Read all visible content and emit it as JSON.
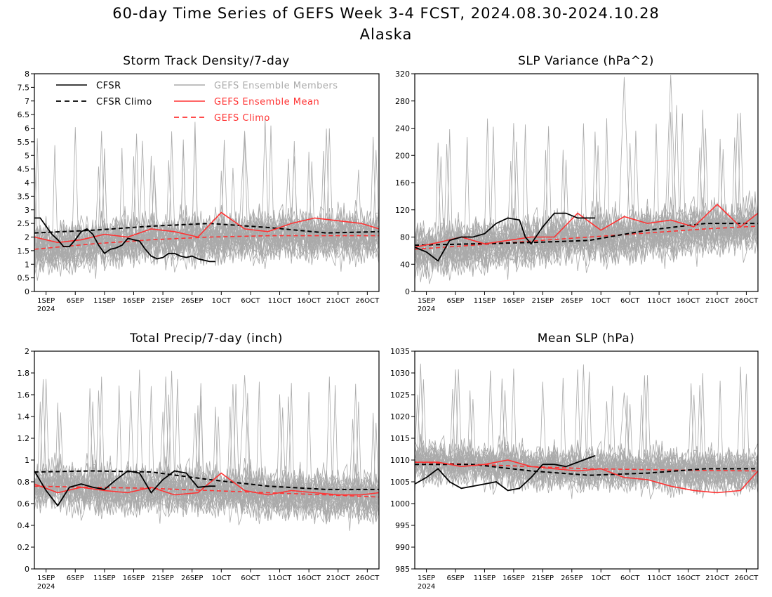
{
  "figure": {
    "title_line1": "60-day Time Series of GEFS Week 3-4 FCST, 2024.08.30-2024.10.28",
    "title_line2": "Alaska"
  },
  "colors": {
    "cfsr": "#000000",
    "members": "#aaaaaa",
    "ens_mean": "#ff3333",
    "gefs_climo": "#ff3333"
  },
  "legend": [
    {
      "key": "cfsr",
      "label": "CFSR",
      "style": "solid",
      "color": "#000000"
    },
    {
      "key": "cfsr_climo",
      "label": "CFSR Climo",
      "style": "dashed",
      "color": "#000000"
    },
    {
      "key": "members",
      "label": "GEFS Ensemble Members",
      "style": "solid",
      "color": "#aaaaaa"
    },
    {
      "key": "ens_mean",
      "label": "GEFS Ensemble Mean",
      "style": "solid",
      "color": "#ff3333"
    },
    {
      "key": "gefs_climo",
      "label": "GEFS Climo",
      "style": "dashed",
      "color": "#ff3333"
    }
  ],
  "chart_data": [
    {
      "type": "line",
      "title": "Storm Track Density/7-day",
      "ylim": [
        0,
        8
      ],
      "yticks": [
        "0",
        "0.5",
        "1",
        "1.5",
        "2",
        "2.5",
        "3",
        "3.5",
        "4",
        "4.5",
        "5",
        "5.5",
        "6",
        "6.5",
        "7",
        "7.5",
        "8"
      ],
      "x_dates": [
        "2024-08-30",
        "2024-10-28"
      ],
      "xticks": [
        "1SEP",
        "6SEP",
        "11SEP",
        "16SEP",
        "21SEP",
        "26SEP",
        "1OCT",
        "6OCT",
        "11OCT",
        "16OCT",
        "21OCT",
        "26OCT"
      ],
      "xtick_year": "2024",
      "ensemble_members": {
        "count": 30,
        "typical_range": [
          0.5,
          4.5
        ],
        "max_values": [
          5.9
        ]
      },
      "series": [
        {
          "name": "CFSR",
          "x_day": [
            0,
            1,
            2,
            3,
            4,
            5,
            6,
            7,
            8,
            9,
            10,
            11,
            12,
            13,
            14,
            15,
            16,
            17,
            18,
            19,
            20,
            21,
            22,
            23,
            24,
            25,
            26,
            27,
            28,
            29,
            30,
            31
          ],
          "values": [
            2.7,
            2.7,
            2.4,
            2.1,
            1.9,
            1.65,
            1.65,
            1.9,
            2.2,
            2.3,
            2.1,
            1.7,
            1.4,
            1.55,
            1.6,
            1.7,
            1.95,
            1.9,
            1.85,
            1.55,
            1.3,
            1.2,
            1.25,
            1.4,
            1.4,
            1.3,
            1.25,
            1.3,
            1.2,
            1.15,
            1.1,
            1.1
          ]
        },
        {
          "name": "CFSR Climo",
          "x_day": [
            0,
            10,
            20,
            30,
            40,
            50,
            59
          ],
          "values": [
            2.15,
            2.25,
            2.4,
            2.5,
            2.35,
            2.15,
            2.2
          ]
        },
        {
          "name": "GEFS Ensemble Mean",
          "x_day": [
            0,
            4,
            8,
            12,
            16,
            20,
            24,
            28,
            32,
            36,
            40,
            44,
            48,
            52,
            56,
            59
          ],
          "values": [
            2.0,
            1.8,
            1.9,
            2.1,
            2.0,
            2.3,
            2.2,
            2.0,
            2.9,
            2.3,
            2.2,
            2.5,
            2.7,
            2.6,
            2.5,
            2.3
          ]
        },
        {
          "name": "GEFS Climo",
          "x_day": [
            0,
            10,
            20,
            30,
            40,
            50,
            59
          ],
          "values": [
            1.55,
            1.75,
            1.9,
            2.0,
            2.05,
            2.05,
            2.05
          ]
        }
      ]
    },
    {
      "type": "line",
      "title": "SLP Variance (hPa^2)",
      "ylim": [
        0,
        320
      ],
      "yticks": [
        "0",
        "40",
        "80",
        "120",
        "160",
        "200",
        "240",
        "280",
        "320"
      ],
      "x_dates": [
        "2024-08-30",
        "2024-10-28"
      ],
      "xticks": [
        "1SEP",
        "6SEP",
        "11SEP",
        "16SEP",
        "21SEP",
        "26SEP",
        "1OCT",
        "6OCT",
        "11OCT",
        "16OCT",
        "21OCT",
        "26OCT"
      ],
      "xtick_year": "2024",
      "ensemble_members": {
        "count": 30,
        "typical_range": [
          30,
          200
        ],
        "max_values": [
          315,
          318
        ]
      },
      "series": [
        {
          "name": "CFSR",
          "x_day": [
            0,
            2,
            4,
            6,
            8,
            10,
            12,
            14,
            16,
            18,
            19,
            20,
            22,
            24,
            26,
            28,
            30,
            31
          ],
          "values": [
            65,
            58,
            45,
            75,
            80,
            80,
            85,
            100,
            108,
            105,
            80,
            70,
            95,
            115,
            115,
            108,
            108,
            108
          ]
        },
        {
          "name": "CFSR Climo",
          "x_day": [
            0,
            10,
            20,
            30,
            40,
            50,
            59
          ],
          "values": [
            68,
            70,
            72,
            75,
            90,
            100,
            100
          ]
        },
        {
          "name": "GEFS Ensemble Mean",
          "x_day": [
            0,
            4,
            8,
            12,
            16,
            20,
            24,
            28,
            32,
            36,
            40,
            44,
            48,
            52,
            56,
            59
          ],
          "values": [
            65,
            72,
            80,
            70,
            75,
            80,
            80,
            115,
            90,
            110,
            100,
            105,
            95,
            128,
            95,
            115
          ]
        },
        {
          "name": "GEFS Climo",
          "x_day": [
            0,
            10,
            20,
            30,
            40,
            50,
            59
          ],
          "values": [
            62,
            68,
            74,
            80,
            86,
            92,
            96
          ]
        }
      ]
    },
    {
      "type": "line",
      "title": "Total Precip/7-day (inch)",
      "ylim": [
        0,
        2
      ],
      "yticks": [
        "0",
        "0.2",
        "0.4",
        "0.6",
        "0.8",
        "1",
        "1.2",
        "1.4",
        "1.6",
        "1.8",
        "2"
      ],
      "x_dates": [
        "2024-08-30",
        "2024-10-28"
      ],
      "xticks": [
        "1SEP",
        "6SEP",
        "11SEP",
        "16SEP",
        "21SEP",
        "26SEP",
        "1OCT",
        "6OCT",
        "11OCT",
        "16OCT",
        "21OCT",
        "26OCT"
      ],
      "xtick_year": "2024",
      "ensemble_members": {
        "count": 30,
        "typical_range": [
          0.3,
          1.3
        ],
        "max_values": [
          1.78
        ]
      },
      "series": [
        {
          "name": "CFSR",
          "x_day": [
            0,
            2,
            4,
            6,
            8,
            10,
            12,
            14,
            16,
            18,
            20,
            22,
            24,
            26,
            28,
            30,
            31
          ],
          "values": [
            0.9,
            0.72,
            0.58,
            0.75,
            0.78,
            0.75,
            0.73,
            0.82,
            0.9,
            0.88,
            0.7,
            0.82,
            0.9,
            0.88,
            0.75,
            0.76,
            0.76
          ]
        },
        {
          "name": "CFSR Climo",
          "x_day": [
            0,
            10,
            20,
            30,
            40,
            50,
            59
          ],
          "values": [
            0.89,
            0.9,
            0.89,
            0.82,
            0.76,
            0.73,
            0.73
          ]
        },
        {
          "name": "GEFS Ensemble Mean",
          "x_day": [
            0,
            4,
            8,
            12,
            16,
            20,
            24,
            28,
            32,
            36,
            40,
            44,
            48,
            52,
            56,
            59
          ],
          "values": [
            0.78,
            0.7,
            0.75,
            0.72,
            0.7,
            0.75,
            0.68,
            0.7,
            0.88,
            0.72,
            0.68,
            0.72,
            0.7,
            0.68,
            0.68,
            0.7
          ]
        },
        {
          "name": "GEFS Climo",
          "x_day": [
            0,
            10,
            20,
            30,
            40,
            50,
            59
          ],
          "values": [
            0.76,
            0.75,
            0.74,
            0.72,
            0.7,
            0.68,
            0.66
          ]
        }
      ]
    },
    {
      "type": "line",
      "title": "Mean SLP (hPa)",
      "ylim": [
        985,
        1035
      ],
      "yticks": [
        "985",
        "990",
        "995",
        "1000",
        "1005",
        "1010",
        "1015",
        "1020",
        "1025",
        "1030",
        "1035"
      ],
      "x_dates": [
        "2024-08-30",
        "2024-10-28"
      ],
      "xticks": [
        "1SEP",
        "6SEP",
        "11SEP",
        "16SEP",
        "21SEP",
        "26SEP",
        "1OCT",
        "6OCT",
        "11OCT",
        "16OCT",
        "21OCT",
        "26OCT"
      ],
      "xtick_year": "2024",
      "ensemble_members": {
        "count": 30,
        "typical_range": [
          995,
          1017
        ],
        "max_values": [
          1025.5
        ]
      },
      "series": [
        {
          "name": "CFSR",
          "x_day": [
            0,
            2,
            4,
            6,
            8,
            10,
            12,
            14,
            16,
            18,
            20,
            22,
            24,
            26,
            28,
            30,
            31
          ],
          "values": [
            1004.5,
            1006,
            1008,
            1005,
            1003.5,
            1004,
            1004.5,
            1005,
            1003,
            1003.5,
            1006,
            1009,
            1009,
            1008.5,
            1009.5,
            1010.5,
            1011
          ]
        },
        {
          "name": "CFSR Climo",
          "x_day": [
            0,
            10,
            20,
            30,
            40,
            50,
            59
          ],
          "values": [
            1009,
            1009,
            1007.5,
            1006.5,
            1007,
            1008,
            1008
          ]
        },
        {
          "name": "GEFS Ensemble Mean",
          "x_day": [
            0,
            4,
            8,
            12,
            16,
            20,
            24,
            28,
            32,
            36,
            40,
            44,
            48,
            52,
            56,
            59
          ],
          "values": [
            1009.5,
            1009.5,
            1008.5,
            1009,
            1010,
            1008.5,
            1008,
            1007.5,
            1008,
            1006,
            1005.5,
            1004,
            1003,
            1002.5,
            1003,
            1007.5
          ]
        },
        {
          "name": "GEFS Climo",
          "x_day": [
            0,
            10,
            20,
            30,
            40,
            50,
            59
          ],
          "values": [
            1009.5,
            1009,
            1008.5,
            1008,
            1007.8,
            1007.6,
            1007.5
          ]
        }
      ]
    }
  ]
}
